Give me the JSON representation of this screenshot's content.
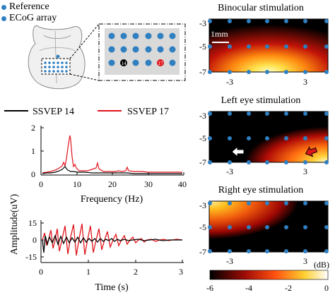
{
  "legend": {
    "reference": "Reference",
    "ecog": "ECoG array"
  },
  "array_labels": {
    "ch14": "14",
    "ch17": "17"
  },
  "ssvep_legend": {
    "s14": "SSVEP 14",
    "s17": "SSVEP 17"
  },
  "spectrum_plot": {
    "yticks": [
      "2",
      "1",
      "0"
    ],
    "xticks": [
      "0",
      "10",
      "20",
      "30",
      "40"
    ],
    "xlabel": "Frequency (Hz)"
  },
  "shared_ylabel": "Amplitude(uV)",
  "time_plot": {
    "yticks": [
      "15",
      "0",
      "-15"
    ],
    "xticks": [
      "0",
      "1",
      "2",
      "3"
    ],
    "xlabel": "Time (s)"
  },
  "heatmaps": [
    {
      "title": "Binocular stimulation",
      "scale_label": "1mm",
      "yticks": [
        "-3",
        "-5",
        "-7"
      ],
      "xticks": [
        "-3",
        "3"
      ]
    },
    {
      "title": "Left eye stimulation",
      "yticks": [
        "-3",
        "-5",
        "-7"
      ],
      "xticks": [
        "-3",
        "3"
      ]
    },
    {
      "title": "Right eye stimulation",
      "yticks": [
        "-3",
        "-5",
        "-7"
      ],
      "xticks": [
        "-3",
        "3"
      ]
    }
  ],
  "colorbar": {
    "unit": "(dB)",
    "ticks": [
      "-6",
      "-4",
      "-2",
      "0"
    ]
  },
  "colors": {
    "electrode": "#2f7fc1",
    "ssvep14": "#000000",
    "ssvep17": "#e0141c",
    "arrow_fill": "#e0141c"
  }
}
